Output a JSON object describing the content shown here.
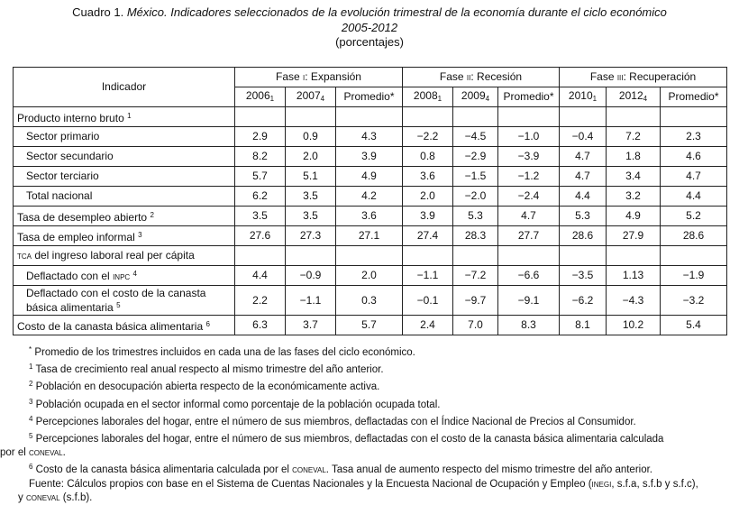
{
  "title": {
    "prefix": "Cuadro 1. ",
    "italic": "México. Indicadores seleccionados de la evolución trimestral de la economía durante el ciclo económico",
    "years": "2005-2012",
    "units": "(porcentajes)"
  },
  "header": {
    "indicador": "Indicador",
    "fase1_a": "Fase ",
    "fase1_num": "i",
    "fase1_b": ": Expansión",
    "fase2_a": "Fase ",
    "fase2_num": "ii",
    "fase2_b": ": Recesión",
    "fase3_a": "Fase ",
    "fase3_num": "iii",
    "fase3_b": ": Recuperación",
    "c1_y": "2006",
    "c1_s": "1",
    "c2_y": "2007",
    "c2_s": "4",
    "c3": "Promedio*",
    "c4_y": "2008",
    "c4_s": "1",
    "c5_y": "2009",
    "c5_s": "4",
    "c6": "Promedio*",
    "c7_y": "2010",
    "c7_s": "1",
    "c8_y": "2012",
    "c8_s": "4",
    "c9": "Promedio*"
  },
  "rows": {
    "pib": {
      "label": "Producto interno bruto",
      "sup": "1"
    },
    "primario": {
      "label": "Sector primario",
      "v": [
        "2.9",
        "0.9",
        "4.3",
        "−2.2",
        "−4.5",
        "−1.0",
        "−0.4",
        "7.2",
        "2.3"
      ]
    },
    "secundario": {
      "label": "Sector secundario",
      "v": [
        "8.2",
        "2.0",
        "3.9",
        "0.8",
        "−2.9",
        "−3.9",
        "4.7",
        "1.8",
        "4.6"
      ]
    },
    "terciario": {
      "label": "Sector terciario",
      "v": [
        "5.7",
        "5.1",
        "4.9",
        "3.6",
        "−1.5",
        "−1.2",
        "4.7",
        "3.4",
        "4.7"
      ]
    },
    "total": {
      "label": "Total nacional",
      "v": [
        "6.2",
        "3.5",
        "4.2",
        "2.0",
        "−2.0",
        "−2.4",
        "4.4",
        "3.2",
        "4.4"
      ]
    },
    "desempleo": {
      "label": "Tasa de desempleo abierto",
      "sup": "2",
      "v": [
        "3.5",
        "3.5",
        "3.6",
        "3.9",
        "5.3",
        "4.7",
        "5.3",
        "4.9",
        "5.2"
      ]
    },
    "informal": {
      "label": "Tasa de empleo informal",
      "sup": "3",
      "v": [
        "27.6",
        "27.3",
        "27.1",
        "27.4",
        "28.3",
        "27.7",
        "28.6",
        "27.9",
        "28.6"
      ]
    },
    "tca": {
      "sc": "tca",
      "label": " del ingreso laboral real per cápita"
    },
    "inpc": {
      "label": "Deflactado con el ",
      "sc": "inpc",
      "sup": "4",
      "v": [
        "4.4",
        "−0.9",
        "2.0",
        "−1.1",
        "−7.2",
        "−6.6",
        "−3.5",
        "1.13",
        "−1.9"
      ]
    },
    "canasta": {
      "label1": "Deflactado con el costo de la canasta",
      "label2": "básica alimentaria",
      "sup": "5",
      "v": [
        "2.2",
        "−1.1",
        "0.3",
        "−0.1",
        "−9.7",
        "−9.1",
        "−6.2",
        "−4.3",
        "−3.2"
      ]
    },
    "costo": {
      "label": "Costo de la canasta básica alimentaria",
      "sup": "6",
      "v": [
        "6.3",
        "3.7",
        "5.7",
        "2.4",
        "7.0",
        "8.3",
        "8.1",
        "10.2",
        "5.4"
      ]
    }
  },
  "notes": {
    "star": {
      "mark": "*",
      "text": " Promedio de los trimestres incluidos en cada una de las fases del ciclo económico."
    },
    "n1": {
      "mark": "1",
      "text": " Tasa de crecimiento real anual respecto al mismo trimestre del año anterior."
    },
    "n2": {
      "mark": "2",
      "text": " Población en desocupación abierta respecto de la económicamente activa."
    },
    "n3": {
      "mark": "3",
      "text": " Población ocupada en el sector informal como porcentaje de la población ocupada total."
    },
    "n4": {
      "mark": "4",
      "text": " Percepciones laborales del hogar, entre el número de sus miembros, deflactadas con el Índice Nacional de Precios al Consumidor."
    },
    "n5": {
      "mark": "5",
      "text": " Percepciones laborales del hogar, entre el número de sus miembros, deflactadas con el costo de la canasta básica alimentaria calculada",
      "cont_a": "por el ",
      "cont_sc": "coneval",
      "cont_b": "."
    },
    "n6": {
      "mark": "6",
      "text_a": " Costo de la canasta básica alimentaria calculada por el ",
      "sc": "coneval",
      "text_b": ". Tasa anual de aumento respecto del mismo trimestre del año anterior."
    },
    "src": {
      "a": "Fuente: Cálculos propios con base en el Sistema de Cuentas Nacionales y la Encuesta Nacional de Ocupación y Empleo (",
      "sc1": "inegi",
      "b": ", s.f.a, s.f.b y s.f.c),",
      "c": "y ",
      "sc2": "coneval",
      "d": " (s.f.b)."
    }
  }
}
